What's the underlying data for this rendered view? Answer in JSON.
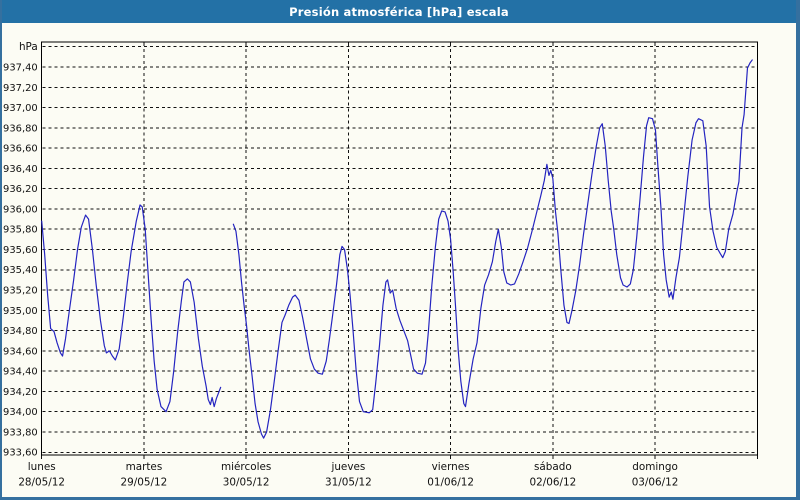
{
  "window": {
    "title": "Presión atmosférica [hPa] escala"
  },
  "colors": {
    "titlebar_blue": "#2371a6",
    "frame_blue": "#35709f",
    "plot_background": "#fcfcf4",
    "grid_black": "#111111",
    "line_blue": "#2424c0",
    "title_text": "#ffffff",
    "axis_text": "#111111"
  },
  "chart_data": {
    "type": "line",
    "title": "Presión atmosférica [hPa] escala",
    "unit_label": "hPa",
    "ylabel": "hPa",
    "ylim": [
      933.6,
      937.6
    ],
    "ytick_step": 0.2,
    "ytick_labels": [
      "933,60",
      "933,80",
      "934,00",
      "934,20",
      "934,40",
      "934,60",
      "934,80",
      "935,00",
      "935,20",
      "935,40",
      "935,60",
      "935,80",
      "936,00",
      "936,20",
      "936,40",
      "936,60",
      "936,80",
      "937,00",
      "937,20",
      "937,40"
    ],
    "top_gridline_label": "hPa",
    "grid": "dashed black horizontal every 0.20 hPa and dashed vertical at each day boundary",
    "legend_position": "none",
    "x_axis": {
      "span_days": 7,
      "hours_total": 168,
      "days": [
        {
          "name": "lunes",
          "date": "28/05/12"
        },
        {
          "name": "martes",
          "date": "29/05/12"
        },
        {
          "name": "miércoles",
          "date": "30/05/12"
        },
        {
          "name": "jueves",
          "date": "31/05/12"
        },
        {
          "name": "viernes",
          "date": "01/06/12"
        },
        {
          "name": "sábado",
          "date": "02/06/12"
        },
        {
          "name": "domingo",
          "date": "03/06/12"
        }
      ]
    },
    "series": [
      {
        "name": "Presión atmosférica [hPa]",
        "color": "#2424c0",
        "note": "points are [hours since lunes 00:00, hPa]; gap between segments = missing data martes evening",
        "segments": [
          [
            [
              0,
              935.88
            ],
            [
              0.7,
              935.55
            ],
            [
              1.4,
              935.15
            ],
            [
              2.1,
              934.82
            ],
            [
              2.9,
              934.79
            ],
            [
              3.6,
              934.68
            ],
            [
              4.4,
              934.58
            ],
            [
              4.9,
              934.55
            ],
            [
              5.6,
              934.72
            ],
            [
              6.5,
              935.0
            ],
            [
              7.5,
              935.3
            ],
            [
              8.4,
              935.6
            ],
            [
              9.3,
              935.82
            ],
            [
              10.3,
              935.94
            ],
            [
              11,
              935.9
            ],
            [
              11.9,
              935.6
            ],
            [
              12.8,
              935.25
            ],
            [
              13.8,
              934.9
            ],
            [
              14.7,
              934.65
            ],
            [
              15.2,
              934.58
            ],
            [
              15.9,
              934.6
            ],
            [
              16.6,
              934.55
            ],
            [
              17.3,
              934.51
            ],
            [
              18.2,
              934.62
            ],
            [
              19.2,
              934.95
            ],
            [
              20.1,
              935.28
            ],
            [
              21,
              935.58
            ],
            [
              22.2,
              935.88
            ],
            [
              23.1,
              936.04
            ],
            [
              23.6,
              936.02
            ],
            [
              24.3,
              935.8
            ],
            [
              25,
              935.35
            ],
            [
              25.7,
              934.9
            ],
            [
              26.4,
              934.5
            ],
            [
              27.1,
              934.22
            ],
            [
              28,
              934.05
            ],
            [
              29.2,
              934.0
            ],
            [
              30.1,
              934.1
            ],
            [
              31,
              934.4
            ],
            [
              31.9,
              934.78
            ],
            [
              32.8,
              935.1
            ],
            [
              33.4,
              935.28
            ],
            [
              34.2,
              935.31
            ],
            [
              34.9,
              935.28
            ],
            [
              35.8,
              935.08
            ],
            [
              36.8,
              934.72
            ],
            [
              37.7,
              934.45
            ],
            [
              38.6,
              934.25
            ],
            [
              39.1,
              934.12
            ],
            [
              39.6,
              934.07
            ],
            [
              40,
              934.14
            ],
            [
              40.5,
              934.05
            ],
            [
              41,
              934.13
            ],
            [
              42,
              934.24
            ]
          ],
          [
            [
              45,
              935.85
            ],
            [
              45.6,
              935.78
            ],
            [
              46.3,
              935.55
            ],
            [
              46.9,
              935.28
            ],
            [
              47.5,
              935.05
            ],
            [
              48.1,
              934.85
            ],
            [
              48.7,
              934.6
            ],
            [
              49.4,
              934.35
            ],
            [
              50.1,
              934.08
            ],
            [
              50.8,
              933.9
            ],
            [
              51.6,
              933.78
            ],
            [
              52.1,
              933.74
            ],
            [
              52.8,
              933.8
            ],
            [
              53.7,
              934.02
            ],
            [
              54.6,
              934.3
            ],
            [
              55.5,
              934.6
            ],
            [
              56.4,
              934.88
            ],
            [
              57.1,
              934.95
            ],
            [
              58,
              935.05
            ],
            [
              58.9,
              935.13
            ],
            [
              59.5,
              935.15
            ],
            [
              60.4,
              935.1
            ],
            [
              61.3,
              934.92
            ],
            [
              62.2,
              934.72
            ],
            [
              63.1,
              934.52
            ],
            [
              64,
              934.42
            ],
            [
              64.9,
              934.38
            ],
            [
              65.9,
              934.37
            ],
            [
              66.8,
              934.5
            ],
            [
              67.5,
              934.7
            ],
            [
              68.3,
              934.95
            ],
            [
              69.2,
              935.25
            ],
            [
              70,
              935.55
            ],
            [
              70.5,
              935.63
            ],
            [
              71.1,
              935.6
            ],
            [
              71.8,
              935.4
            ],
            [
              72.4,
              935.15
            ],
            [
              73.1,
              934.8
            ],
            [
              73.8,
              934.42
            ],
            [
              74.6,
              934.1
            ],
            [
              75.5,
              934.0
            ],
            [
              76.9,
              933.99
            ],
            [
              77.7,
              934.02
            ],
            [
              78.4,
              934.28
            ],
            [
              79.3,
              934.65
            ],
            [
              80.1,
              935.05
            ],
            [
              80.8,
              935.28
            ],
            [
              81.2,
              935.3
            ],
            [
              81.8,
              935.17
            ],
            [
              82.4,
              935.2
            ],
            [
              83.2,
              935.02
            ],
            [
              84.1,
              934.9
            ],
            [
              85,
              934.8
            ],
            [
              85.9,
              934.7
            ],
            [
              86.6,
              934.56
            ],
            [
              87.3,
              934.42
            ],
            [
              88.2,
              934.38
            ],
            [
              89.3,
              934.37
            ],
            [
              90.1,
              934.48
            ],
            [
              90.8,
              934.8
            ],
            [
              91.6,
              935.25
            ],
            [
              92.4,
              935.62
            ],
            [
              93.2,
              935.9
            ],
            [
              93.9,
              935.98
            ],
            [
              94.7,
              935.97
            ],
            [
              95.4,
              935.88
            ],
            [
              96,
              935.7
            ],
            [
              96.6,
              935.38
            ],
            [
              97.2,
              935.02
            ],
            [
              97.8,
              934.6
            ],
            [
              98.4,
              934.3
            ],
            [
              99.1,
              934.08
            ],
            [
              99.5,
              934.05
            ],
            [
              100.3,
              934.28
            ],
            [
              101.3,
              934.52
            ],
            [
              102.2,
              934.68
            ],
            [
              103.1,
              935.02
            ],
            [
              104,
              935.25
            ],
            [
              104.9,
              935.35
            ],
            [
              105.8,
              935.48
            ],
            [
              106.6,
              935.68
            ],
            [
              107.2,
              935.8
            ],
            [
              107.9,
              935.62
            ],
            [
              108.5,
              935.38
            ],
            [
              109.2,
              935.27
            ],
            [
              110.1,
              935.25
            ],
            [
              111,
              935.26
            ],
            [
              112,
              935.36
            ],
            [
              113,
              935.48
            ],
            [
              114.1,
              935.62
            ],
            [
              115.1,
              935.78
            ],
            [
              116.1,
              935.95
            ],
            [
              117.1,
              936.12
            ],
            [
              118,
              936.28
            ],
            [
              118.6,
              936.44
            ],
            [
              119.1,
              936.33
            ],
            [
              119.5,
              936.38
            ],
            [
              120,
              936.3
            ],
            [
              120.6,
              935.98
            ],
            [
              121.2,
              935.76
            ],
            [
              121.9,
              935.38
            ],
            [
              122.6,
              935.05
            ],
            [
              123.3,
              934.88
            ],
            [
              123.8,
              934.87
            ],
            [
              124.5,
              935.0
            ],
            [
              125.4,
              935.2
            ],
            [
              126.3,
              935.45
            ],
            [
              127.2,
              935.75
            ],
            [
              128.2,
              936.05
            ],
            [
              129.2,
              936.35
            ],
            [
              130.2,
              936.62
            ],
            [
              131,
              936.8
            ],
            [
              131.6,
              936.84
            ],
            [
              132.3,
              936.62
            ],
            [
              133,
              936.28
            ],
            [
              133.7,
              935.98
            ],
            [
              134.3,
              935.8
            ],
            [
              135,
              935.55
            ],
            [
              135.9,
              935.32
            ],
            [
              136.5,
              935.25
            ],
            [
              137.4,
              935.23
            ],
            [
              138.2,
              935.26
            ],
            [
              138.9,
              935.4
            ],
            [
              139.7,
              935.72
            ],
            [
              140.5,
              936.12
            ],
            [
              141.3,
              936.52
            ],
            [
              142,
              936.82
            ],
            [
              142.5,
              936.9
            ],
            [
              143.4,
              936.89
            ],
            [
              144.1,
              936.78
            ],
            [
              144.7,
              936.4
            ],
            [
              145.4,
              936.0
            ],
            [
              146,
              935.55
            ],
            [
              146.6,
              935.3
            ],
            [
              147.3,
              935.13
            ],
            [
              147.8,
              935.18
            ],
            [
              148.2,
              935.11
            ],
            [
              148.9,
              935.32
            ],
            [
              149.7,
              935.52
            ],
            [
              150.7,
              935.92
            ],
            [
              151.7,
              936.32
            ],
            [
              152.7,
              936.68
            ],
            [
              153.6,
              936.85
            ],
            [
              154.2,
              936.89
            ],
            [
              155.2,
              936.87
            ],
            [
              156,
              936.62
            ],
            [
              156.8,
              936.02
            ],
            [
              157.6,
              935.78
            ],
            [
              158.5,
              935.62
            ],
            [
              159.3,
              935.56
            ],
            [
              159.9,
              935.52
            ],
            [
              160.5,
              935.58
            ],
            [
              161.3,
              935.8
            ],
            [
              162.3,
              935.95
            ],
            [
              163.1,
              936.15
            ],
            [
              163.7,
              936.27
            ],
            [
              164.4,
              936.8
            ],
            [
              164.9,
              936.93
            ],
            [
              165.7,
              937.39
            ],
            [
              166.3,
              937.44
            ],
            [
              166.8,
              937.47
            ]
          ]
        ]
      }
    ]
  }
}
